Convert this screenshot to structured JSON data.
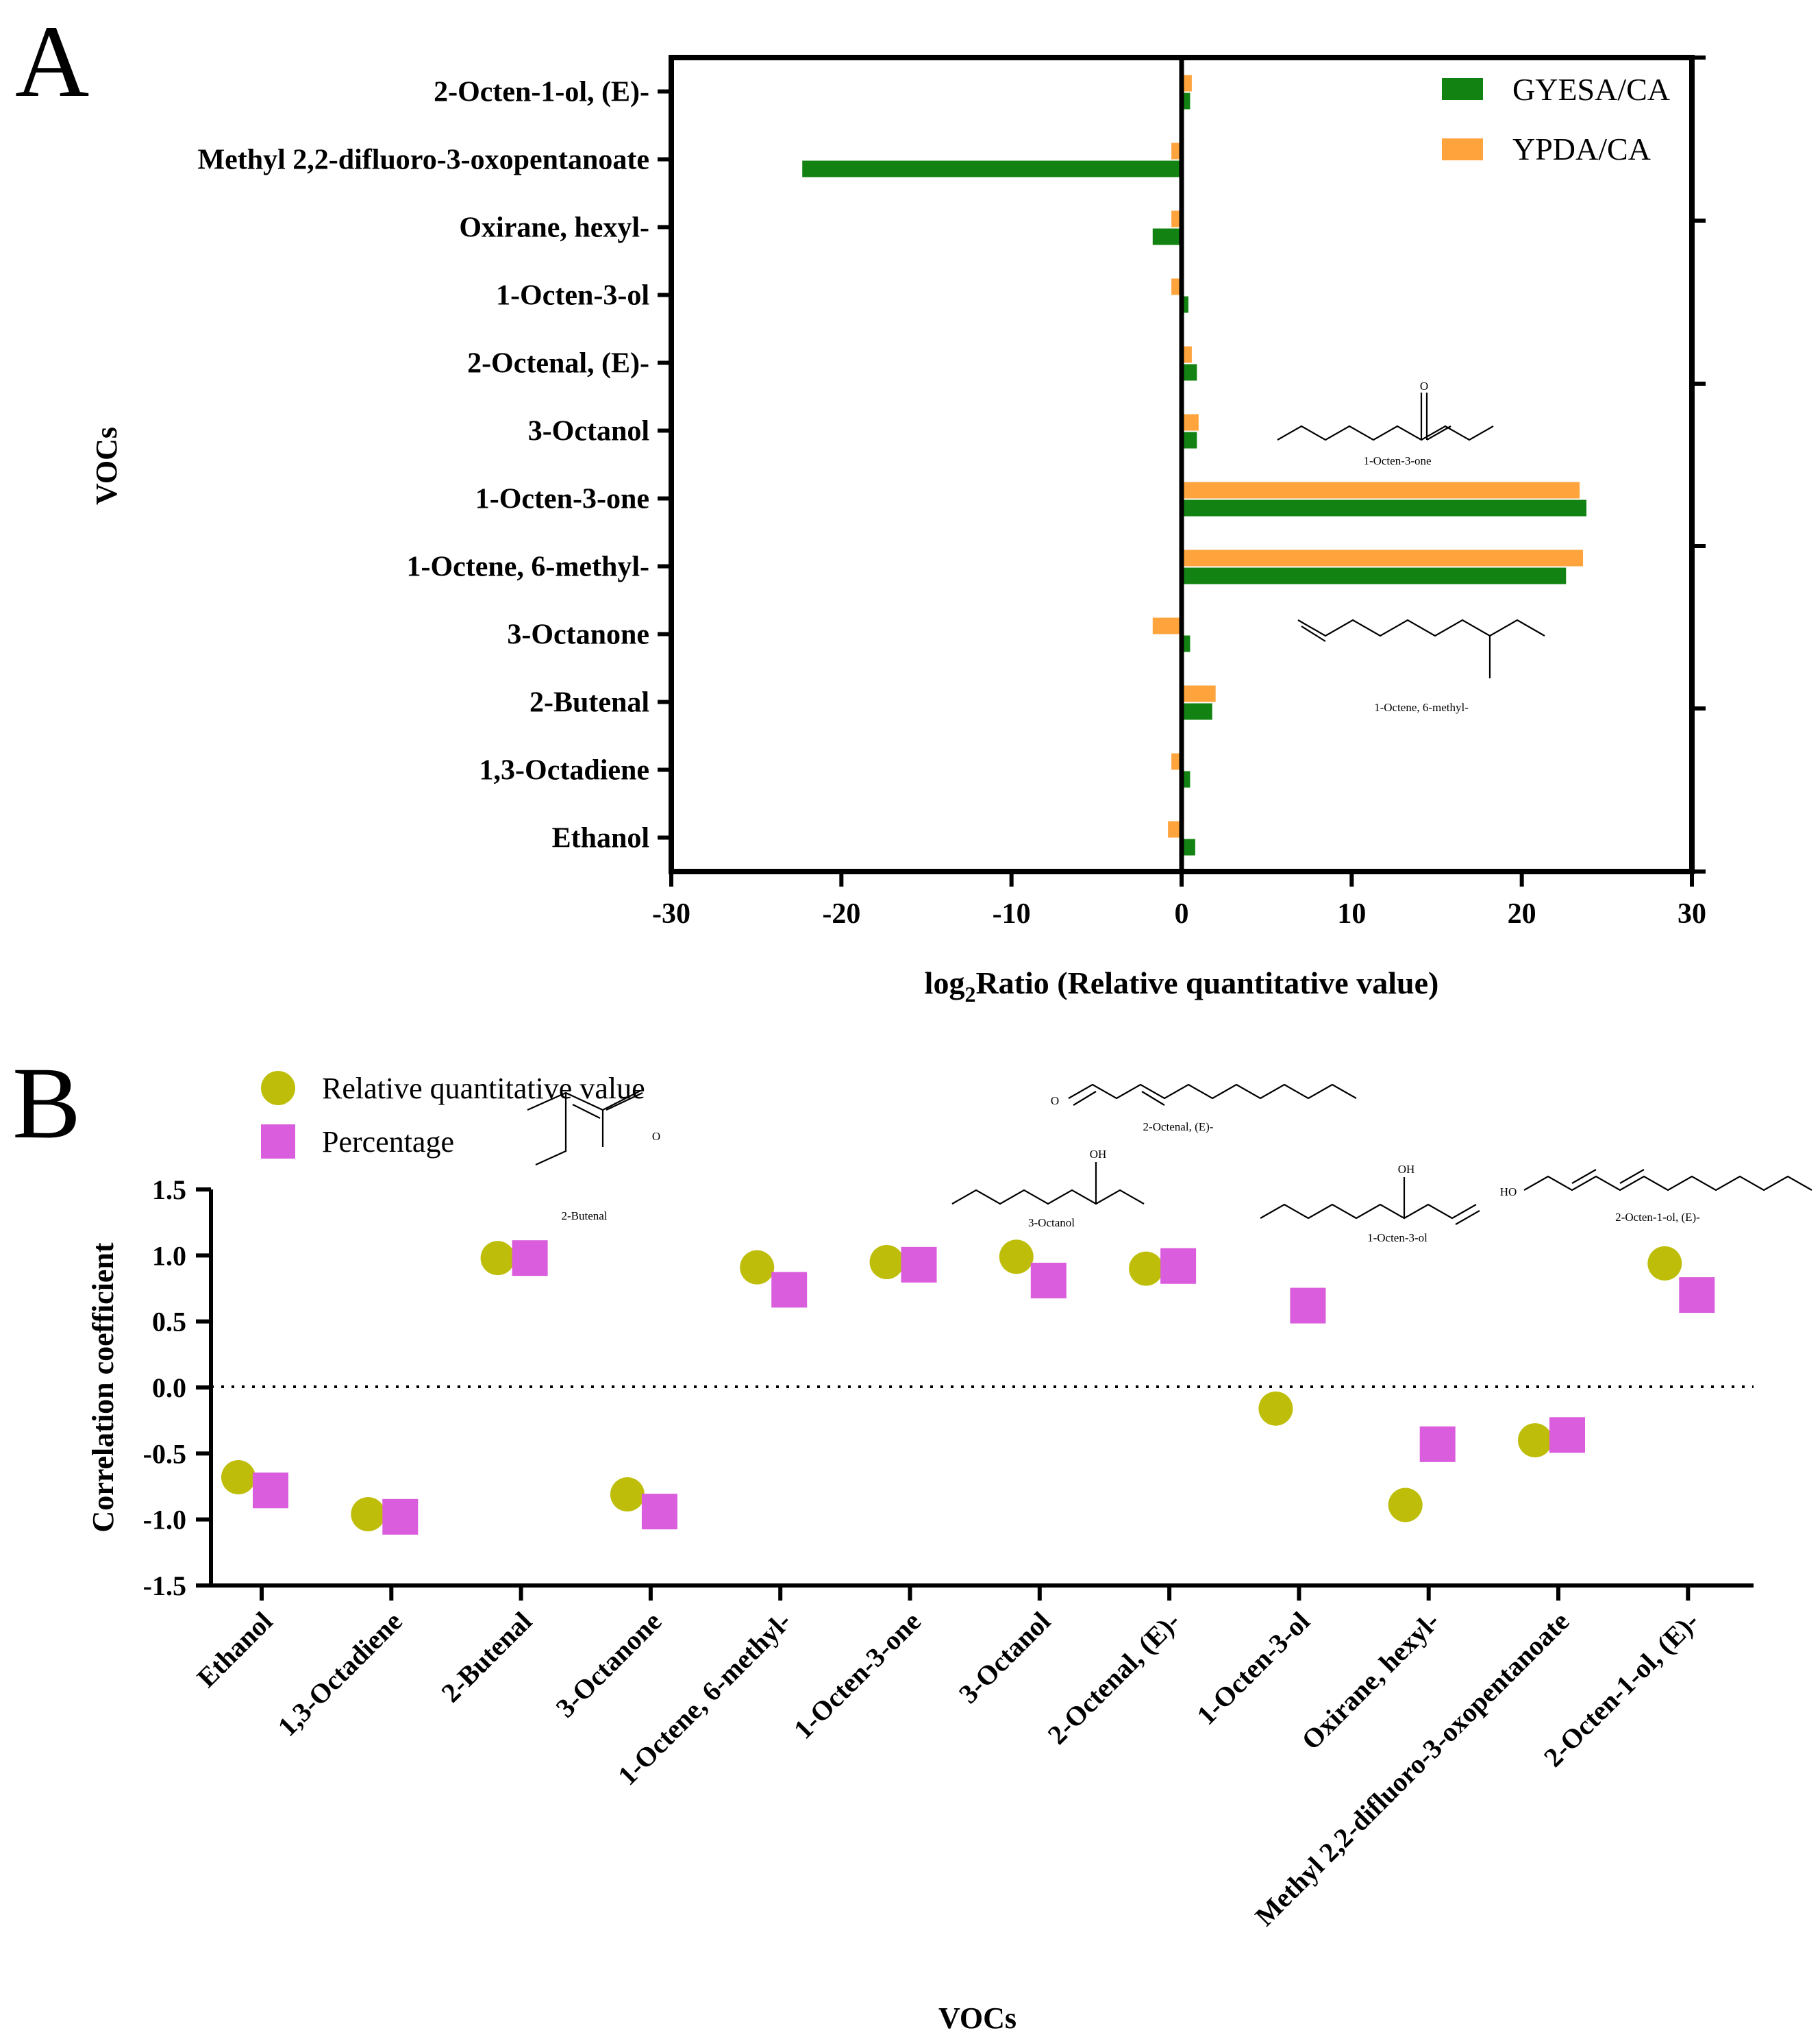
{
  "panel_a": {
    "label": "A",
    "legend": [
      "GYESA/CA",
      "YPDA/CA"
    ],
    "structures": [
      "1-Octen-3-one",
      "1-Octene, 6-methyl-"
    ],
    "atoms": {
      "o": "O"
    }
  },
  "panel_b": {
    "label": "B",
    "legend": [
      "Relative quantitative value",
      "Percentage"
    ],
    "structures": [
      "2-Butenal",
      "3-Octanol",
      "2-Octenal, (E)-",
      "1-Octen-3-ol",
      "2-Octen-1-ol, (E)-"
    ],
    "atoms": {
      "o": "O",
      "oh": "OH",
      "ho": "HO"
    }
  },
  "chart_data": [
    {
      "type": "bar",
      "orientation": "horizontal",
      "title": "",
      "xlabel": "log2Ratio (Relative quantitative value)",
      "xlabel_main": "log",
      "xlabel_sub": "2",
      "xlabel_rest": "Ratio (Relative quantitative value)",
      "ylabel": "VOCs",
      "xlim": [
        -30,
        30
      ],
      "xticks": [
        -30,
        -20,
        -10,
        0,
        10,
        20,
        30
      ],
      "categories": [
        "2-Octen-1-ol, (E)-",
        "Methyl 2,2-difluoro-3-oxopentanoate",
        "Oxirane, hexyl-",
        "1-Octen-3-ol",
        "2-Octenal, (E)-",
        "3-Octanol",
        "1-Octen-3-one",
        "1-Octene,   6-methyl-",
        "3-Octanone",
        "2-Butenal",
        "1,3-Octadiene",
        "Ethanol"
      ],
      "series": [
        {
          "name": "GYESA/CA",
          "color": "#128212",
          "values": [
            0.5,
            -22.3,
            -1.7,
            0.4,
            0.9,
            0.9,
            23.8,
            22.6,
            0.5,
            1.8,
            0.5,
            0.8
          ]
        },
        {
          "name": "YPDA/CA",
          "color": "#ffa43c",
          "values": [
            0.6,
            -0.6,
            -0.6,
            -0.6,
            0.6,
            1.0,
            23.4,
            23.6,
            -1.7,
            2.0,
            -0.6,
            -0.8
          ]
        }
      ],
      "legend_position": "top-right",
      "grid": false
    },
    {
      "type": "scatter",
      "title": "",
      "xlabel": "VOCs",
      "ylabel": "Correlation coefficient",
      "ylim": [
        -1.5,
        1.5
      ],
      "yticks": [
        "1.5",
        "1.0",
        "0.5",
        "0.0",
        "-0.5",
        "-1.0",
        "-1.5"
      ],
      "categories": [
        "Ethanol",
        "1,3-Octadiene",
        "2-Butenal",
        "3-Octanone",
        "1-Octene, 6-methyl-",
        "1-Octen-3-one",
        "3-Octanol",
        "2-Octenal, (E)-",
        "1-Octen-3-ol",
        "Oxirane, hexyl-",
        "Methyl 2,2-difluoro-3-oxopentanoate",
        "2-Octen-1-ol, (E)-"
      ],
      "series": [
        {
          "name": "Relative quantitative value",
          "marker": "circle",
          "color": "#bebe0a",
          "values": [
            -0.68,
            -0.96,
            0.98,
            -0.81,
            0.91,
            0.95,
            0.99,
            0.9,
            -0.16,
            -0.89,
            -0.4,
            0.94
          ]
        },
        {
          "name": "Percentage",
          "marker": "square",
          "color": "#d95ddc",
          "values": [
            -0.78,
            -0.98,
            0.98,
            -0.94,
            0.74,
            0.93,
            0.81,
            0.92,
            0.62,
            -0.43,
            -0.36,
            0.7
          ]
        }
      ],
      "reference_line": 0,
      "legend_position": "top-left",
      "grid": false
    }
  ]
}
